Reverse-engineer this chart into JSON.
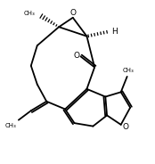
{
  "background": "#ffffff",
  "line_color": "#000000",
  "lw": 1.3,
  "figsize": [
    1.74,
    1.84
  ],
  "dpi": 100,
  "xlim": [
    0,
    10
  ],
  "ylim": [
    0,
    10.5
  ]
}
